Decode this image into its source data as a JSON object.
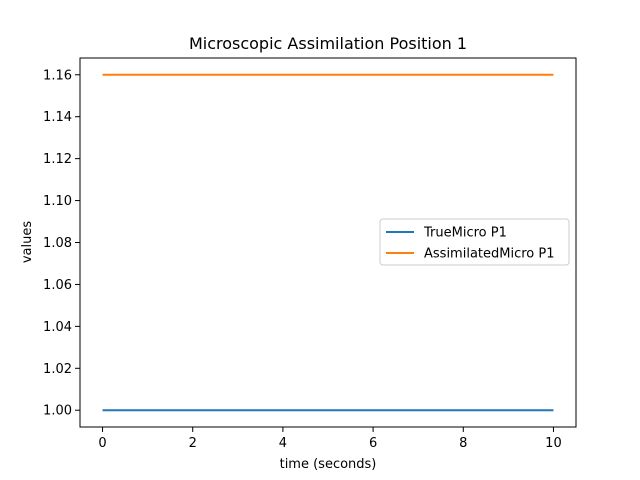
{
  "chart_data": {
    "type": "line",
    "title": "Microscopic Assimilation Position 1",
    "xlabel": "time (seconds)",
    "ylabel": "values",
    "xlim": [
      -0.5,
      10.5
    ],
    "ylim": [
      0.992,
      1.168
    ],
    "xticks": [
      0,
      2,
      4,
      6,
      8,
      10
    ],
    "xtick_labels": [
      "0",
      "2",
      "4",
      "6",
      "8",
      "10"
    ],
    "yticks": [
      1.0,
      1.02,
      1.04,
      1.06,
      1.08,
      1.1,
      1.12,
      1.14,
      1.16
    ],
    "ytick_labels": [
      "1.00",
      "1.02",
      "1.04",
      "1.06",
      "1.08",
      "1.10",
      "1.12",
      "1.14",
      "1.16"
    ],
    "grid": false,
    "legend_position": "center-right",
    "series": [
      {
        "name": "TrueMicro P1",
        "color": "#1f77b4",
        "x": [
          0,
          10
        ],
        "y": [
          1.0,
          1.0
        ]
      },
      {
        "name": "AssimilatedMicro P1",
        "color": "#ff7f0e",
        "x": [
          0,
          10
        ],
        "y": [
          1.16,
          1.16
        ]
      }
    ]
  }
}
